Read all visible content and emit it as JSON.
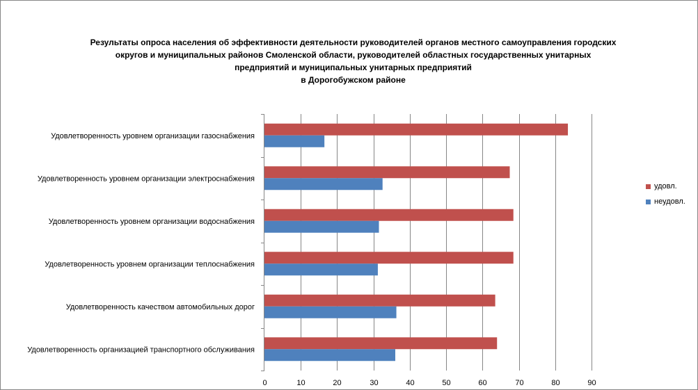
{
  "chart_data": {
    "type": "bar",
    "orientation": "horizontal",
    "title_lines": [
      "Результаты опроса населения об эффективности деятельности руководителей органов местного самоуправления городских",
      "округов и муниципальных районов Смоленской области, руководителей областных государственных унитарных",
      "предприятий и муниципальных унитарных предприятий",
      "в Дорогобужском районе"
    ],
    "categories": [
      "Удовлетворенность  уровнем  организации газоснабжения",
      "Удовлетворенность  уровнем организации электроснабжения",
      "Удовлетворенность  уровнем  организации водоснабжения",
      "Удовлетворенность  уровнем  организации теплоснабжения",
      "Удовлетворенность  качеством  автомобильных дорог",
      "Удовлетворенность  организацией  транспортного обслуживания"
    ],
    "series": [
      {
        "name": "удовл.",
        "color": "#C0504D",
        "values": [
          83.5,
          67.5,
          68.5,
          68.5,
          63.5,
          64
        ]
      },
      {
        "name": "неудовл.",
        "color": "#4F81BD",
        "values": [
          16.5,
          32.5,
          31.5,
          31.2,
          36.3,
          36
        ]
      }
    ],
    "xlim": [
      0,
      90
    ],
    "xticks": [
      "0",
      "10",
      "20",
      "30",
      "40",
      "50",
      "60",
      "70",
      "80",
      "90"
    ],
    "grid": true,
    "legend_position": "right"
  }
}
